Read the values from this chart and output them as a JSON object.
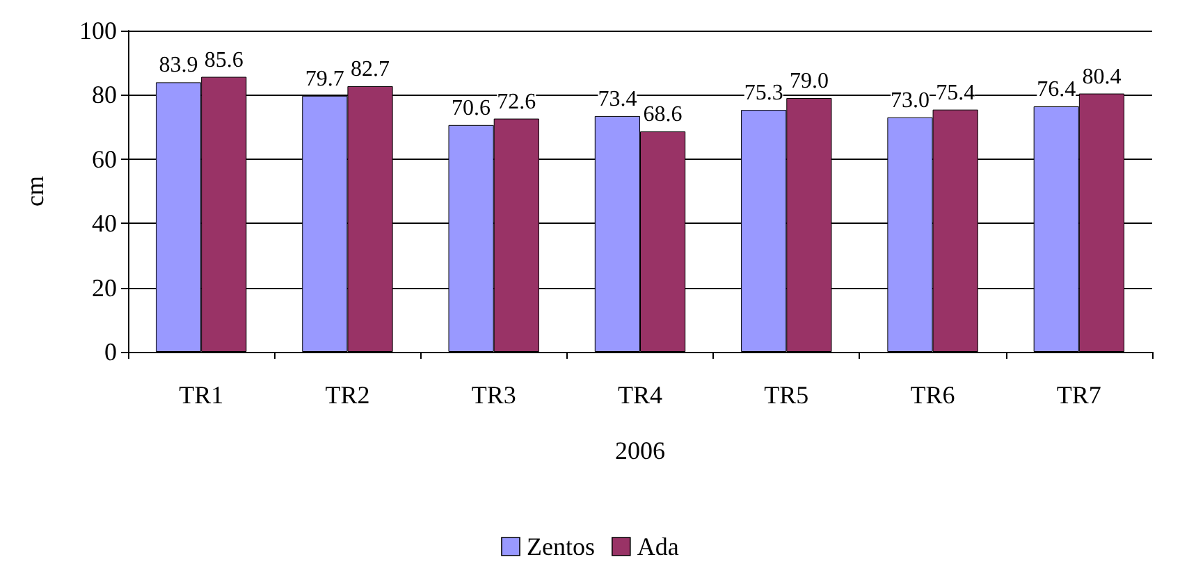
{
  "chart_data": {
    "type": "bar",
    "xlabel": "2006",
    "ylabel": "cm",
    "categories": [
      "TR1",
      "TR2",
      "TR3",
      "TR4",
      "TR5",
      "TR6",
      "TR7"
    ],
    "series": [
      {
        "name": "Zentos",
        "color": "#9999ff",
        "values": [
          83.9,
          79.7,
          70.6,
          73.4,
          75.3,
          73.0,
          76.4
        ],
        "value_labels": [
          "83.9",
          "79.7",
          "70.6",
          "73.4",
          "75.3",
          "73.0",
          "76.4"
        ]
      },
      {
        "name": "Ada",
        "color": "#993366",
        "values": [
          85.6,
          82.7,
          72.6,
          68.6,
          79.0,
          75.4,
          80.4
        ],
        "value_labels": [
          "85.6",
          "82.7",
          "72.6",
          "68.6",
          "79.0",
          "75.4",
          "80.4"
        ]
      }
    ],
    "ylim": [
      0,
      100
    ],
    "yticks": [
      0,
      20,
      40,
      60,
      80,
      100
    ],
    "grid": "y",
    "legend": "bottom"
  }
}
